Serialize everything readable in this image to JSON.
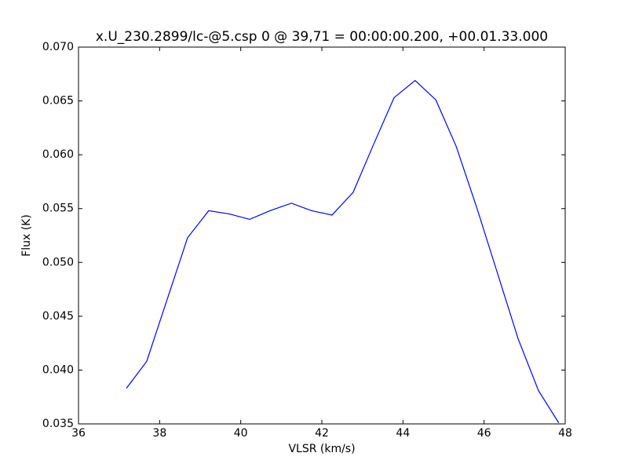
{
  "chart_data": {
    "type": "line",
    "title": "x.U_230.2899/lc-@5.csp 0 @ 39,71 = 00:00:00.200, +00.01.33.000",
    "x_label": "VLSR (km/s)",
    "y_label": "Flux (K)",
    "x": [
      37.18,
      37.68,
      38.69,
      39.21,
      39.72,
      40.22,
      40.72,
      41.25,
      41.75,
      42.25,
      42.77,
      43.28,
      43.78,
      44.3,
      44.81,
      45.31,
      45.81,
      46.33,
      46.84,
      47.34,
      47.84
    ],
    "series": [
      {
        "color": "#0000ff",
        "values": [
          0.0383,
          0.0408,
          0.0523,
          0.0548,
          0.0545,
          0.054,
          0.0548,
          0.0555,
          0.0548,
          0.0544,
          0.0565,
          0.061,
          0.0653,
          0.0669,
          0.0651,
          0.0608,
          0.0552,
          0.049,
          0.0429,
          0.0381,
          0.0351
        ]
      }
    ],
    "xlim": [
      36,
      48
    ],
    "xticks": [
      36,
      38,
      40,
      42,
      44,
      46,
      48
    ],
    "ylim": [
      0.035,
      0.07
    ],
    "yticks": [
      0.035,
      {
        "value": 0.04,
        "label": "0.040"
      },
      0.045,
      {
        "value": 0.05,
        "label": "0.050"
      },
      0.055,
      {
        "value": 0.06,
        "label": "0.060"
      },
      0.065,
      {
        "value": 0.07,
        "label": "0.070"
      }
    ],
    "grid": false
  }
}
